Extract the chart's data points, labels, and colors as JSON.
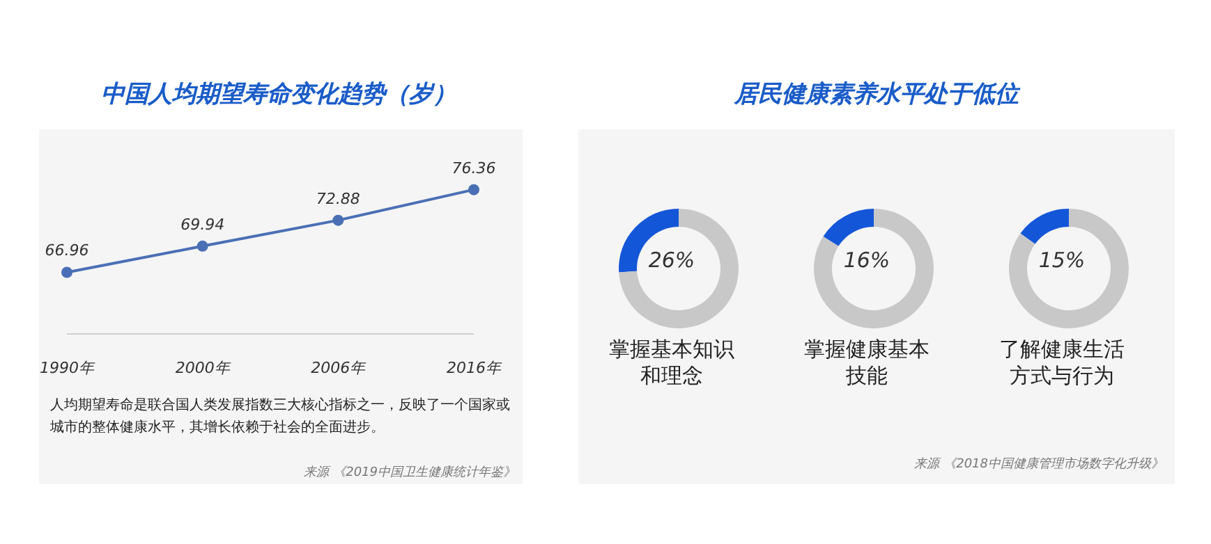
{
  "chart_data": [
    {
      "type": "line",
      "title": "中国人均期望寿命变化趋势（岁）",
      "categories": [
        "1990年",
        "2000年",
        "2006年",
        "2016年"
      ],
      "values": [
        66.96,
        69.94,
        72.88,
        76.36
      ],
      "color": "#4a6fb5",
      "data_labels": true,
      "marker": "circle",
      "tick_labels": "x",
      "annotations": [
        "人均期望寿命是联合国人类发展指数三大核心指标之一，反映了一个国家或城市的整体健康水平，其增长依赖于社会的全面进步。",
        "来源 《2019中国卫生健康统计年鉴》"
      ]
    },
    {
      "type": "donut",
      "xlabel": "掌握基本知识和理念",
      "categories": [
        null,
        null
      ],
      "values": [
        26,
        74
      ],
      "colors": [
        "#1456d8",
        "#c8c8c8"
      ],
      "value_labels": [
        "26%",
        null
      ]
    },
    {
      "type": "donut",
      "title": "居民健康素养水平处于低位",
      "xlabel": "掌握健康基本技能",
      "categories": [
        null,
        null
      ],
      "values": [
        16,
        84
      ],
      "colors": [
        "#1456d8",
        "#c8c8c8"
      ],
      "value_labels": [
        "16%",
        null
      ]
    },
    {
      "type": "donut",
      "xlabel": "了解健康生活方式与行为",
      "categories": [
        null,
        null
      ],
      "values": [
        15,
        85
      ],
      "colors": [
        "#1456d8",
        "#c8c8c8"
      ],
      "value_labels": [
        "15%",
        null
      ],
      "annotations": [
        "来源 《2018中国健康管理市场数字化升级》"
      ]
    }
  ]
}
